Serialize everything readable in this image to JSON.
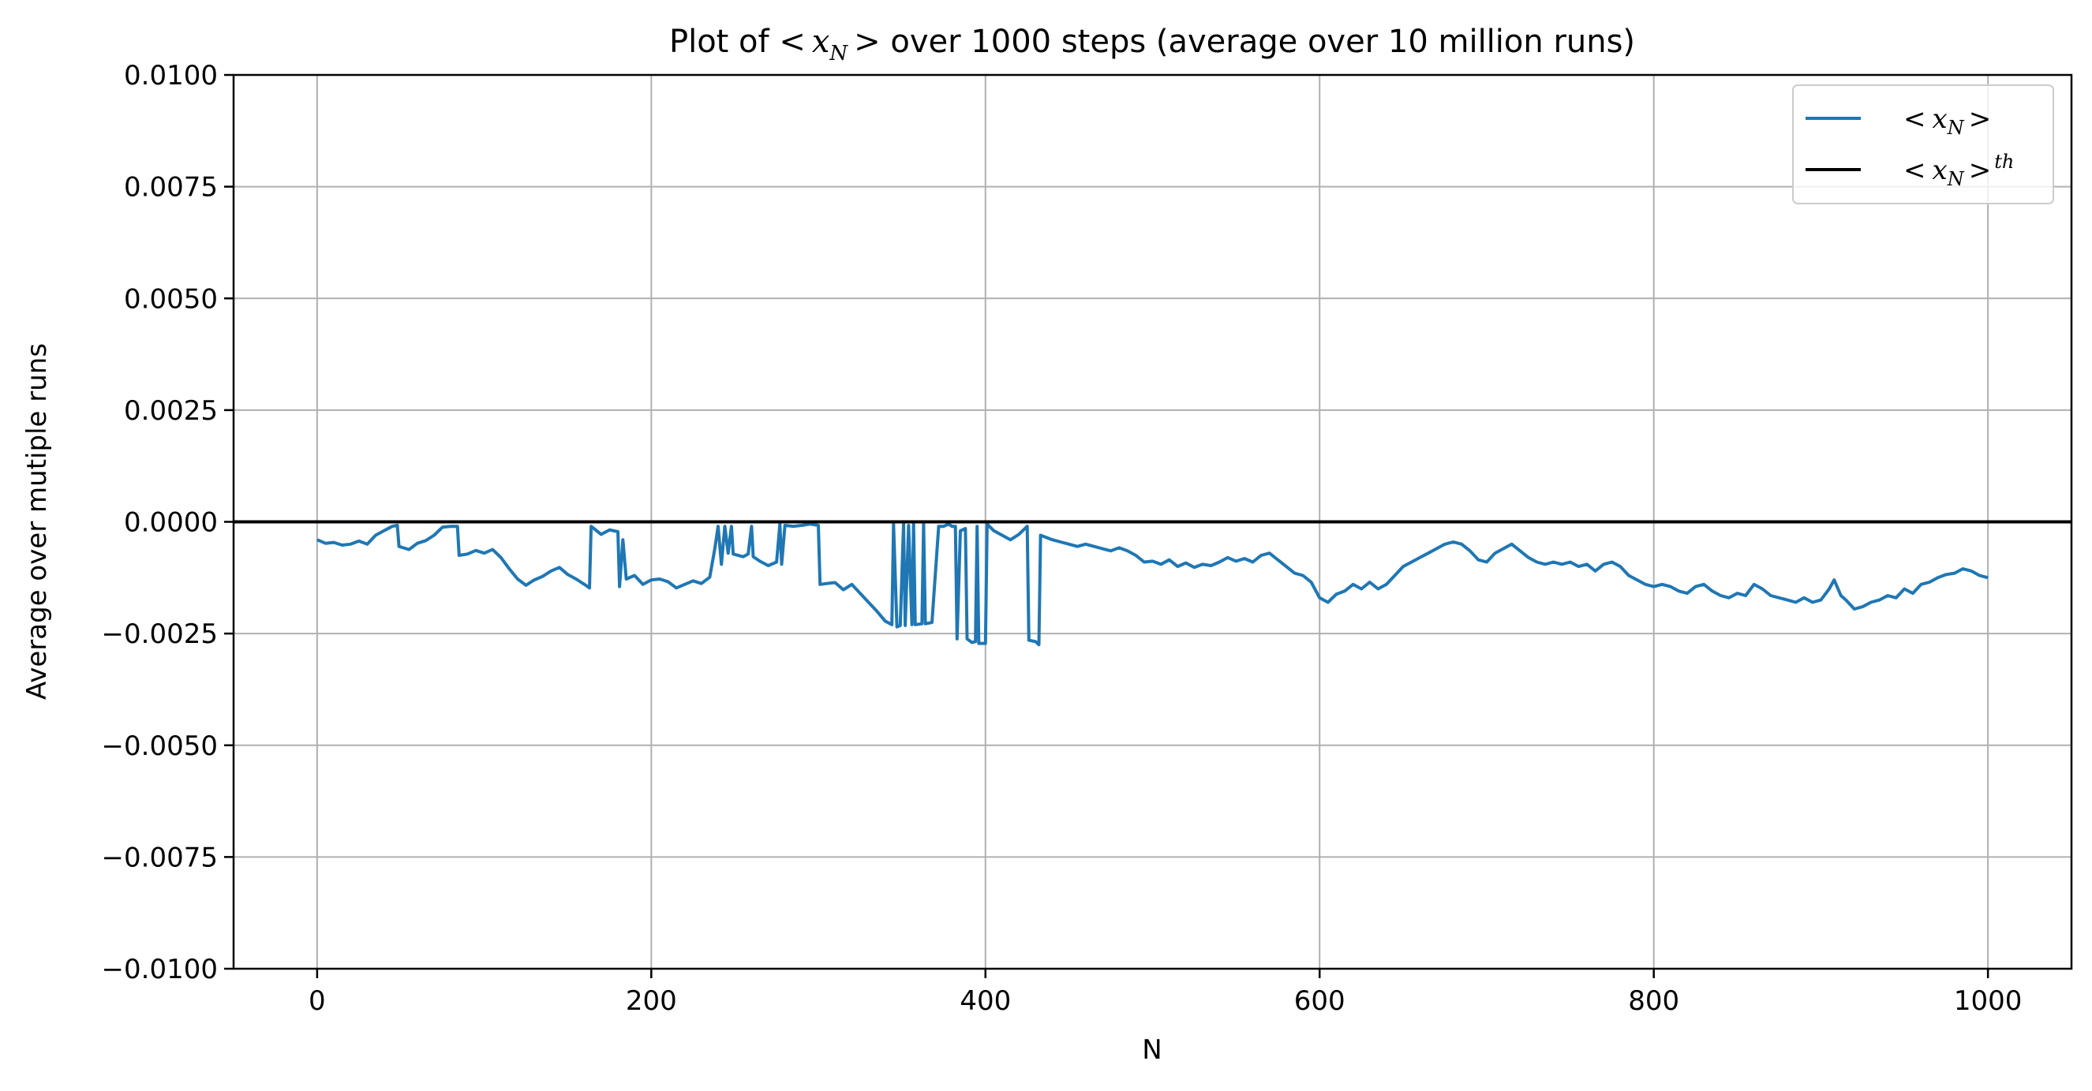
{
  "chart_data": {
    "type": "line",
    "title": {
      "prefix": "Plot of ",
      "math_lt": "<",
      "math_x": "x",
      "math_sub": "N",
      "math_gt": ">",
      "suffix": " over 1000 steps (average over 10 million runs)"
    },
    "xlabel": "N",
    "ylabel": "Average over mutiple runs",
    "xlim": [
      -50,
      1050
    ],
    "ylim": [
      -0.01,
      0.01
    ],
    "xticks": [
      0,
      200,
      400,
      600,
      800,
      1000
    ],
    "xtick_labels": [
      "0",
      "200",
      "400",
      "600",
      "800",
      "1000"
    ],
    "yticks": [
      0.01,
      0.0075,
      0.005,
      0.0025,
      0.0,
      -0.0025,
      -0.005,
      -0.0075,
      -0.01
    ],
    "ytick_labels": [
      "0.0100",
      "0.0075",
      "0.0050",
      "0.0025",
      "0.0000",
      "−0.0025",
      "−0.0050",
      "−0.0075",
      "−0.0100"
    ],
    "grid": true,
    "legend": {
      "placement": "top-right",
      "items": [
        {
          "lt": "<",
          "x": "x",
          "sub": "N",
          "gt": ">",
          "sup": ""
        },
        {
          "lt": "<",
          "x": "x",
          "sub": "N",
          "gt": ">",
          "sup": "th"
        }
      ]
    },
    "series": [
      {
        "color": "#1f77b4",
        "points": [
          [
            0,
            -0.0004
          ],
          [
            5,
            -0.00048
          ],
          [
            10,
            -0.00046
          ],
          [
            15,
            -0.00052
          ],
          [
            20,
            -0.0005
          ],
          [
            25,
            -0.00043
          ],
          [
            30,
            -0.0005
          ],
          [
            35,
            -0.0003
          ],
          [
            40,
            -0.0002
          ],
          [
            45,
            -0.0001
          ],
          [
            48,
            -8e-05
          ],
          [
            49,
            -0.00055
          ],
          [
            55,
            -0.00062
          ],
          [
            60,
            -0.00048
          ],
          [
            65,
            -0.00042
          ],
          [
            70,
            -0.0003
          ],
          [
            75,
            -0.00012
          ],
          [
            80,
            -0.0001
          ],
          [
            84,
            -0.0001
          ],
          [
            85,
            -0.00075
          ],
          [
            90,
            -0.00072
          ],
          [
            95,
            -0.00064
          ],
          [
            100,
            -0.0007
          ],
          [
            105,
            -0.00062
          ],
          [
            110,
            -0.0008
          ],
          [
            115,
            -0.00105
          ],
          [
            120,
            -0.00128
          ],
          [
            125,
            -0.00142
          ],
          [
            130,
            -0.0013
          ],
          [
            135,
            -0.00122
          ],
          [
            140,
            -0.0011
          ],
          [
            145,
            -0.00102
          ],
          [
            150,
            -0.00118
          ],
          [
            155,
            -0.00128
          ],
          [
            160,
            -0.0014
          ],
          [
            163,
            -0.00148
          ],
          [
            164,
            -0.0001
          ],
          [
            170,
            -0.00028
          ],
          [
            175,
            -0.00018
          ],
          [
            180,
            -0.00022
          ],
          [
            181,
            -0.00145
          ],
          [
            183,
            -0.0004
          ],
          [
            185,
            -0.00128
          ],
          [
            190,
            -0.0012
          ],
          [
            195,
            -0.0014
          ],
          [
            200,
            -0.0013
          ],
          [
            205,
            -0.00128
          ],
          [
            210,
            -0.00134
          ],
          [
            215,
            -0.00148
          ],
          [
            220,
            -0.0014
          ],
          [
            225,
            -0.00132
          ],
          [
            230,
            -0.00138
          ],
          [
            235,
            -0.00124
          ],
          [
            238,
            -0.0006
          ],
          [
            240,
            -0.0001
          ],
          [
            242,
            -0.00095
          ],
          [
            244,
            -0.0001
          ],
          [
            246,
            -0.0007
          ],
          [
            248,
            -0.0001
          ],
          [
            249,
            -0.00072
          ],
          [
            255,
            -0.00078
          ],
          [
            258,
            -0.00072
          ],
          [
            260,
            -0.0001
          ],
          [
            261,
            -0.00078
          ],
          [
            265,
            -0.00088
          ],
          [
            270,
            -0.00098
          ],
          [
            275,
            -0.0009
          ],
          [
            277,
            -5e-05
          ],
          [
            278,
            -0.00095
          ],
          [
            280,
            -8e-05
          ],
          [
            285,
            -0.0001
          ],
          [
            290,
            -8e-05
          ],
          [
            295,
            -5e-05
          ],
          [
            300,
            -8e-05
          ],
          [
            301,
            -0.0014
          ],
          [
            305,
            -0.00138
          ],
          [
            310,
            -0.00136
          ],
          [
            315,
            -0.00152
          ],
          [
            320,
            -0.0014
          ],
          [
            325,
            -0.0016
          ],
          [
            330,
            -0.0018
          ],
          [
            335,
            -0.002
          ],
          [
            340,
            -0.00222
          ],
          [
            344,
            -0.0023
          ],
          [
            345,
            -5e-05
          ],
          [
            347,
            -0.00235
          ],
          [
            349,
            -0.00232
          ],
          [
            351,
            -5e-05
          ],
          [
            352,
            -0.00232
          ],
          [
            354,
            -8e-05
          ],
          [
            356,
            -0.0023
          ],
          [
            357,
            -5e-05
          ],
          [
            358,
            -0.0023
          ],
          [
            362,
            -0.00228
          ],
          [
            363,
            -5e-05
          ],
          [
            364,
            -0.00228
          ],
          [
            368,
            -0.00225
          ],
          [
            372,
            -0.0001
          ],
          [
            375,
            -0.0001
          ],
          [
            378,
            -5e-05
          ],
          [
            380,
            -0.0001
          ],
          [
            382,
            -0.0001
          ],
          [
            383,
            -0.00262
          ],
          [
            385,
            -0.0002
          ],
          [
            388,
            -0.00015
          ],
          [
            389,
            -0.00262
          ],
          [
            392,
            -0.0027
          ],
          [
            394,
            -0.00268
          ],
          [
            395,
            -0.0001
          ],
          [
            396,
            -0.00272
          ],
          [
            400,
            -0.00272
          ],
          [
            401,
            -5e-05
          ],
          [
            405,
            -0.0002
          ],
          [
            410,
            -0.0003
          ],
          [
            415,
            -0.0004
          ],
          [
            420,
            -0.00028
          ],
          [
            425,
            -0.0001
          ],
          [
            426,
            -0.00265
          ],
          [
            430,
            -0.00268
          ],
          [
            432,
            -0.00275
          ],
          [
            433,
            -0.0003
          ],
          [
            440,
            -0.0004
          ],
          [
            445,
            -0.00045
          ],
          [
            450,
            -0.0005
          ],
          [
            455,
            -0.00055
          ],
          [
            460,
            -0.0005
          ],
          [
            465,
            -0.00055
          ],
          [
            470,
            -0.0006
          ],
          [
            475,
            -0.00065
          ],
          [
            480,
            -0.00058
          ],
          [
            485,
            -0.00065
          ],
          [
            490,
            -0.00075
          ],
          [
            495,
            -0.0009
          ],
          [
            500,
            -0.00088
          ],
          [
            505,
            -0.00095
          ],
          [
            510,
            -0.00085
          ],
          [
            515,
            -0.001
          ],
          [
            520,
            -0.00092
          ],
          [
            525,
            -0.00102
          ],
          [
            530,
            -0.00095
          ],
          [
            535,
            -0.00098
          ],
          [
            540,
            -0.0009
          ],
          [
            545,
            -0.0008
          ],
          [
            550,
            -0.00088
          ],
          [
            555,
            -0.00082
          ],
          [
            560,
            -0.0009
          ],
          [
            565,
            -0.00075
          ],
          [
            570,
            -0.0007
          ],
          [
            575,
            -0.00085
          ],
          [
            580,
            -0.001
          ],
          [
            585,
            -0.00115
          ],
          [
            590,
            -0.0012
          ],
          [
            595,
            -0.00135
          ],
          [
            600,
            -0.0017
          ],
          [
            605,
            -0.0018
          ],
          [
            610,
            -0.00162
          ],
          [
            615,
            -0.00155
          ],
          [
            620,
            -0.0014
          ],
          [
            625,
            -0.0015
          ],
          [
            630,
            -0.00135
          ],
          [
            635,
            -0.0015
          ],
          [
            640,
            -0.0014
          ],
          [
            645,
            -0.0012
          ],
          [
            650,
            -0.001
          ],
          [
            655,
            -0.0009
          ],
          [
            660,
            -0.0008
          ],
          [
            665,
            -0.0007
          ],
          [
            670,
            -0.0006
          ],
          [
            675,
            -0.0005
          ],
          [
            680,
            -0.00045
          ],
          [
            685,
            -0.0005
          ],
          [
            690,
            -0.00065
          ],
          [
            695,
            -0.00085
          ],
          [
            700,
            -0.0009
          ],
          [
            705,
            -0.0007
          ],
          [
            710,
            -0.0006
          ],
          [
            715,
            -0.0005
          ],
          [
            720,
            -0.00065
          ],
          [
            725,
            -0.0008
          ],
          [
            730,
            -0.0009
          ],
          [
            735,
            -0.00095
          ],
          [
            740,
            -0.0009
          ],
          [
            745,
            -0.00095
          ],
          [
            750,
            -0.0009
          ],
          [
            755,
            -0.001
          ],
          [
            760,
            -0.00095
          ],
          [
            765,
            -0.0011
          ],
          [
            770,
            -0.00095
          ],
          [
            775,
            -0.0009
          ],
          [
            780,
            -0.001
          ],
          [
            785,
            -0.0012
          ],
          [
            790,
            -0.0013
          ],
          [
            795,
            -0.0014
          ],
          [
            800,
            -0.00145
          ],
          [
            805,
            -0.0014
          ],
          [
            810,
            -0.00145
          ],
          [
            815,
            -0.00155
          ],
          [
            820,
            -0.0016
          ],
          [
            825,
            -0.00145
          ],
          [
            830,
            -0.0014
          ],
          [
            835,
            -0.00155
          ],
          [
            840,
            -0.00165
          ],
          [
            845,
            -0.0017
          ],
          [
            850,
            -0.0016
          ],
          [
            855,
            -0.00165
          ],
          [
            860,
            -0.0014
          ],
          [
            865,
            -0.0015
          ],
          [
            870,
            -0.00165
          ],
          [
            875,
            -0.0017
          ],
          [
            880,
            -0.00175
          ],
          [
            885,
            -0.0018
          ],
          [
            890,
            -0.0017
          ],
          [
            895,
            -0.0018
          ],
          [
            900,
            -0.00175
          ],
          [
            905,
            -0.0015
          ],
          [
            908,
            -0.0013
          ],
          [
            912,
            -0.00165
          ],
          [
            915,
            -0.00175
          ],
          [
            920,
            -0.00195
          ],
          [
            925,
            -0.0019
          ],
          [
            930,
            -0.0018
          ],
          [
            935,
            -0.00175
          ],
          [
            940,
            -0.00165
          ],
          [
            945,
            -0.0017
          ],
          [
            950,
            -0.0015
          ],
          [
            955,
            -0.0016
          ],
          [
            960,
            -0.0014
          ],
          [
            965,
            -0.00135
          ],
          [
            970,
            -0.00125
          ],
          [
            975,
            -0.00118
          ],
          [
            980,
            -0.00115
          ],
          [
            985,
            -0.00105
          ],
          [
            990,
            -0.0011
          ],
          [
            995,
            -0.0012
          ],
          [
            1000,
            -0.00125
          ]
        ]
      },
      {
        "color": "#000000",
        "y": 0.0
      }
    ]
  }
}
